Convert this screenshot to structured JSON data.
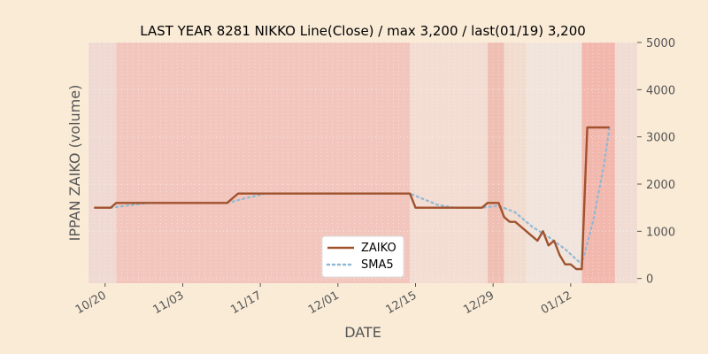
{
  "chart_data": {
    "type": "line",
    "title": "LAST YEAR 8281 NIKKO Line(Close) / max 3,200 / last(01/19) 3,200",
    "xlabel": "DATE",
    "ylabel": "IPPAN ZAIKO (volume)",
    "ylim": [
      -100,
      5000
    ],
    "y_ticks": [
      0,
      1000,
      2000,
      3000,
      4000,
      5000
    ],
    "y_axis_side": "right",
    "x_axis": {
      "start": "2022-10-17",
      "end": "2023-01-24",
      "tick_dates": [
        "2022-10-20",
        "2022-11-03",
        "2022-11-17",
        "2022-12-01",
        "2022-12-15",
        "2022-12-29",
        "2023-01-12"
      ],
      "tick_labels": [
        "10/20",
        "11/03",
        "11/17",
        "12/01",
        "12/15",
        "12/29",
        "01/12"
      ]
    },
    "grid": true,
    "legend_position": "lower-center",
    "series": [
      {
        "name": "ZAIKO",
        "color": "#a0522d",
        "style": "solid",
        "points": [
          [
            "2022-10-18",
            1500
          ],
          [
            "2022-10-21",
            1500
          ],
          [
            "2022-10-22",
            1600
          ],
          [
            "2022-10-28",
            1600
          ],
          [
            "2022-11-04",
            1600
          ],
          [
            "2022-11-11",
            1600
          ],
          [
            "2022-11-12",
            1700
          ],
          [
            "2022-11-13",
            1800
          ],
          [
            "2022-11-18",
            1800
          ],
          [
            "2022-11-25",
            1800
          ],
          [
            "2022-12-02",
            1800
          ],
          [
            "2022-12-09",
            1800
          ],
          [
            "2022-12-14",
            1800
          ],
          [
            "2022-12-15",
            1500
          ],
          [
            "2022-12-22",
            1500
          ],
          [
            "2022-12-27",
            1500
          ],
          [
            "2022-12-28",
            1600
          ],
          [
            "2022-12-30",
            1600
          ],
          [
            "2022-12-31",
            1300
          ],
          [
            "2023-01-01",
            1200
          ],
          [
            "2023-01-02",
            1200
          ],
          [
            "2023-01-03",
            1100
          ],
          [
            "2023-01-04",
            1000
          ],
          [
            "2023-01-05",
            900
          ],
          [
            "2023-01-06",
            800
          ],
          [
            "2023-01-07",
            1000
          ],
          [
            "2023-01-08",
            700
          ],
          [
            "2023-01-09",
            800
          ],
          [
            "2023-01-10",
            500
          ],
          [
            "2023-01-11",
            300
          ],
          [
            "2023-01-12",
            300
          ],
          [
            "2023-01-13",
            200
          ],
          [
            "2023-01-14",
            200
          ],
          [
            "2023-01-15",
            3200
          ],
          [
            "2023-01-18",
            3200
          ],
          [
            "2023-01-19",
            3200
          ]
        ]
      },
      {
        "name": "SMA5",
        "color": "#8fb8d4",
        "style": "dotted",
        "points": [
          [
            "2022-10-21",
            1500
          ],
          [
            "2022-10-25",
            1560
          ],
          [
            "2022-10-28",
            1600
          ],
          [
            "2022-11-11",
            1600
          ],
          [
            "2022-11-15",
            1720
          ],
          [
            "2022-11-18",
            1800
          ],
          [
            "2022-12-14",
            1800
          ],
          [
            "2022-12-19",
            1560
          ],
          [
            "2022-12-22",
            1500
          ],
          [
            "2022-12-27",
            1500
          ],
          [
            "2022-12-30",
            1540
          ],
          [
            "2023-01-02",
            1400
          ],
          [
            "2023-01-05",
            1100
          ],
          [
            "2023-01-08",
            880
          ],
          [
            "2023-01-11",
            620
          ],
          [
            "2023-01-14",
            300
          ],
          [
            "2023-01-16",
            1200
          ],
          [
            "2023-01-18",
            2400
          ],
          [
            "2023-01-19",
            3200
          ]
        ]
      }
    ],
    "background_bands": [
      {
        "start": "2022-10-17",
        "end": "2022-10-22",
        "color": "#efd9d2"
      },
      {
        "start": "2022-10-22",
        "end": "2022-12-14",
        "color": "#f2c6bd"
      },
      {
        "start": "2022-12-14",
        "end": "2022-12-28",
        "color": "#f3dcd2"
      },
      {
        "start": "2022-12-28",
        "end": "2022-12-31",
        "color": "#f0bfb4"
      },
      {
        "start": "2022-12-31",
        "end": "2023-01-04",
        "color": "#f2dcd0"
      },
      {
        "start": "2023-01-04",
        "end": "2023-01-14",
        "color": "#f1e4dc"
      },
      {
        "start": "2023-01-14",
        "end": "2023-01-20",
        "color": "#f2b8ae"
      },
      {
        "start": "2023-01-20",
        "end": "2023-01-24",
        "color": "#f0dcd3"
      }
    ]
  }
}
